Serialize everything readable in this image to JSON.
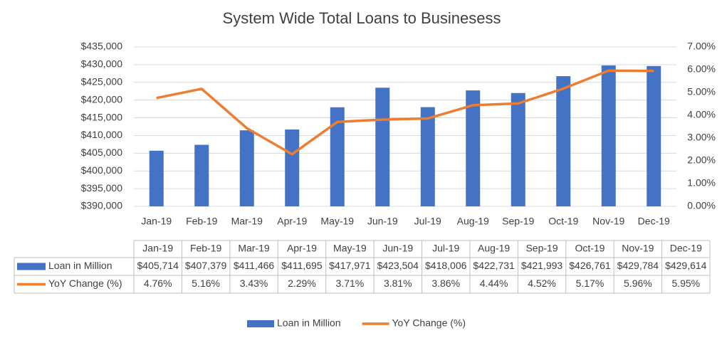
{
  "chart_data": {
    "type": "combo",
    "title": "System Wide Total Loans to Businesess",
    "categories": [
      "Jan-19",
      "Feb-19",
      "Mar-19",
      "Apr-19",
      "May-19",
      "Jun-19",
      "Jul-19",
      "Aug-19",
      "Sep-19",
      "Oct-19",
      "Nov-19",
      "Dec-19"
    ],
    "series": [
      {
        "name": "Loan in Million",
        "type": "bar",
        "color": "#4472c4",
        "values": [
          405714,
          407379,
          411466,
          411695,
          417971,
          423504,
          418006,
          422731,
          421993,
          426761,
          429784,
          429614
        ],
        "value_labels": [
          "$405,714",
          "$407,379",
          "$411,466",
          "$411,695",
          "$417,971",
          "$423,504",
          "$418,006",
          "$422,731",
          "$421,993",
          "$426,761",
          "$429,784",
          "$429,614"
        ]
      },
      {
        "name": "YoY Change (%)",
        "type": "line",
        "color": "#ed7d31",
        "axis": "y2",
        "values": [
          4.76,
          5.16,
          3.43,
          2.29,
          3.71,
          3.81,
          3.86,
          4.44,
          4.52,
          5.17,
          5.96,
          5.95
        ],
        "value_labels": [
          "4.76%",
          "5.16%",
          "3.43%",
          "2.29%",
          "3.71%",
          "3.81%",
          "3.86%",
          "4.44%",
          "4.52%",
          "5.17%",
          "5.96%",
          "5.95%"
        ]
      }
    ],
    "ylim": [
      390000,
      435000
    ],
    "yticks": [
      {
        "value": 390000,
        "label": "$390,000"
      },
      {
        "value": 395000,
        "label": "$395,000"
      },
      {
        "value": 400000,
        "label": "$400,000"
      },
      {
        "value": 405000,
        "label": "$405,000"
      },
      {
        "value": 410000,
        "label": "$410,000"
      },
      {
        "value": 415000,
        "label": "$415,000"
      },
      {
        "value": 420000,
        "label": "$420,000"
      },
      {
        "value": 425000,
        "label": "$425,000"
      },
      {
        "value": 430000,
        "label": "$430,000"
      },
      {
        "value": 435000,
        "label": "$435,000"
      }
    ],
    "y2lim": [
      0,
      7
    ],
    "y2ticks": [
      {
        "value": 0,
        "label": "0.00%"
      },
      {
        "value": 1,
        "label": "1.00%"
      },
      {
        "value": 2,
        "label": "2.00%"
      },
      {
        "value": 3,
        "label": "3.00%"
      },
      {
        "value": 4,
        "label": "4.00%"
      },
      {
        "value": 5,
        "label": "5.00%"
      },
      {
        "value": 6,
        "label": "6.00%"
      },
      {
        "value": 7,
        "label": "7.00%"
      }
    ],
    "grid": true,
    "data_table": true,
    "legend": "bottom"
  }
}
